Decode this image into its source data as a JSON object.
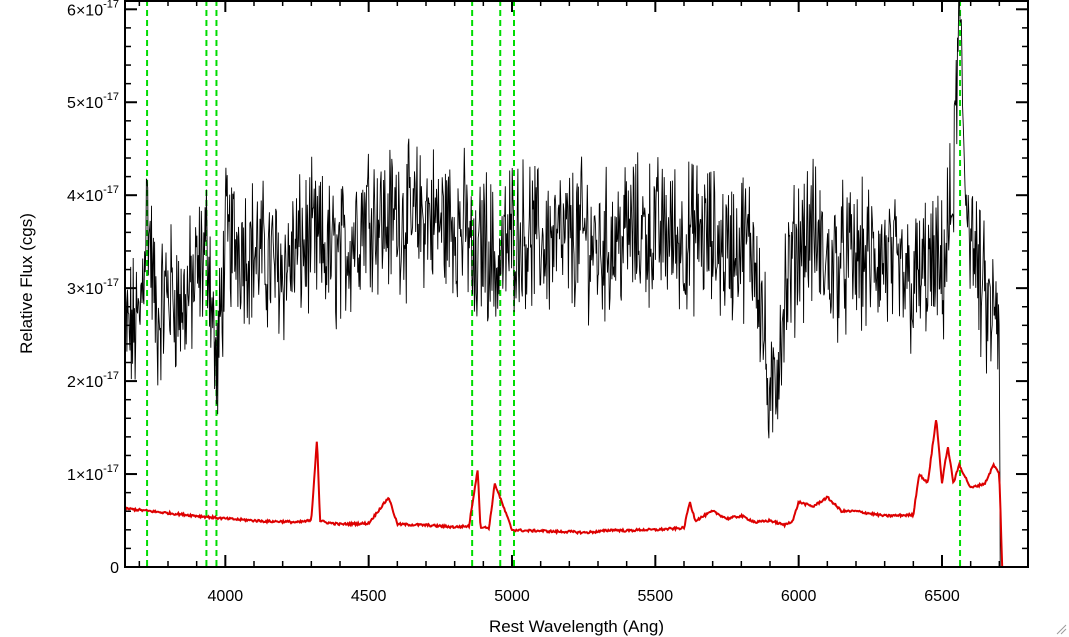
{
  "chart_data": {
    "type": "line",
    "title": "",
    "xlabel": "Rest Wavelength (Ang)",
    "ylabel": "Relative Flux (cgs)",
    "xlim": [
      3650,
      6800
    ],
    "ylim": [
      0,
      6.1e-17
    ],
    "xticks": [
      {
        "value": 4000,
        "label": "4000"
      },
      {
        "value": 4500,
        "label": "4500"
      },
      {
        "value": 5000,
        "label": "5000"
      },
      {
        "value": 5500,
        "label": "5500"
      },
      {
        "value": 6000,
        "label": "6000"
      },
      {
        "value": 6500,
        "label": "6500"
      }
    ],
    "yticks": [
      {
        "value": 0,
        "label": "0",
        "mantissa": "",
        "exponent": ""
      },
      {
        "value": 1e-17,
        "label": "1×10⁻¹⁷",
        "mantissa": "1×10",
        "exponent": "-17"
      },
      {
        "value": 2e-17,
        "label": "2×10⁻¹⁷",
        "mantissa": "2×10",
        "exponent": "-17"
      },
      {
        "value": 3e-17,
        "label": "3×10⁻¹⁷",
        "mantissa": "3×10",
        "exponent": "-17"
      },
      {
        "value": 4e-17,
        "label": "4×10⁻¹⁷",
        "mantissa": "4×10",
        "exponent": "-17"
      },
      {
        "value": 5e-17,
        "label": "5×10⁻¹⁷",
        "mantissa": "5×10",
        "exponent": "-17"
      },
      {
        "value": 6e-17,
        "label": "6×10⁻¹⁷",
        "mantissa": "6×10",
        "exponent": "-17"
      }
    ],
    "grid": false,
    "legend": "none",
    "vlines": {
      "color": "#00dd00",
      "style": "dashed",
      "x": [
        3727,
        3934,
        3969,
        4861,
        4959,
        5007,
        6563
      ]
    },
    "series": [
      {
        "color": "#000000",
        "style": "noisy",
        "x": [
          3650,
          3700,
          3727,
          3760,
          3800,
          3850,
          3900,
          3940,
          3970,
          4000,
          4050,
          4100,
          4150,
          4200,
          4250,
          4300,
          4350,
          4400,
          4450,
          4500,
          4550,
          4600,
          4650,
          4700,
          4750,
          4800,
          4850,
          4870,
          4900,
          4950,
          5000,
          5050,
          5100,
          5150,
          5200,
          5250,
          5300,
          5350,
          5400,
          5450,
          5500,
          5550,
          5600,
          5650,
          5700,
          5750,
          5800,
          5850,
          5880,
          5900,
          5950,
          6000,
          6050,
          6100,
          6150,
          6200,
          6250,
          6300,
          6350,
          6400,
          6450,
          6500,
          6540,
          6560,
          6580,
          6620,
          6660,
          6700
        ],
        "y": [
          2.5e-17,
          2.6e-17,
          3.9e-17,
          2.6e-17,
          3e-17,
          2.8e-17,
          3.1e-17,
          3.5e-17,
          2e-17,
          3.5e-17,
          3.5e-17,
          3.4e-17,
          3.3e-17,
          3.2e-17,
          3.4e-17,
          3.5e-17,
          3.4e-17,
          3.3e-17,
          3.6e-17,
          3.9e-17,
          3.7e-17,
          3.8e-17,
          3.7e-17,
          3.8e-17,
          3.7e-17,
          3.7e-17,
          3.6e-17,
          3e-17,
          3.6e-17,
          3.2e-17,
          3.6e-17,
          3.6e-17,
          3.5e-17,
          3.5e-17,
          3.5e-17,
          3.6e-17,
          3.4e-17,
          3.5e-17,
          3.6e-17,
          3.6e-17,
          3.6e-17,
          3.6e-17,
          3.5e-17,
          3.6e-17,
          3.5e-17,
          3.4e-17,
          3.5e-17,
          3.4e-17,
          2.5e-17,
          1.5e-17,
          2.9e-17,
          3.5e-17,
          3.6e-17,
          3.2e-17,
          3.3e-17,
          3.3e-17,
          3.3e-17,
          3.3e-17,
          3.1e-17,
          3e-17,
          3.2e-17,
          3.1e-17,
          4e-17,
          6e-17,
          4.2e-17,
          3.2e-17,
          2.7e-17,
          2.7e-17
        ]
      },
      {
        "color": "#dd0000",
        "style": "smooth",
        "x": [
          3650,
          3800,
          3900,
          4000,
          4100,
          4150,
          4200,
          4250,
          4300,
          4320,
          4330,
          4350,
          4400,
          4500,
          4570,
          4600,
          4700,
          4800,
          4850,
          4880,
          4890,
          4920,
          4940,
          5000,
          5050,
          5100,
          5150,
          5200,
          5250,
          5300,
          5350,
          5400,
          5450,
          5500,
          5550,
          5600,
          5620,
          5640,
          5700,
          5750,
          5800,
          5850,
          5900,
          5950,
          5980,
          6000,
          6050,
          6100,
          6150,
          6200,
          6300,
          6400,
          6420,
          6450,
          6480,
          6500,
          6520,
          6540,
          6560,
          6600,
          6650,
          6680,
          6700,
          6710
        ],
        "y": [
          6.3e-18,
          5.8e-18,
          5.5e-18,
          5.2e-18,
          5e-18,
          4.9e-18,
          4.9e-18,
          4.8e-18,
          5e-18,
          1.4e-17,
          5e-18,
          4.8e-18,
          4.6e-18,
          4.7e-18,
          7.5e-18,
          4.6e-18,
          4.5e-18,
          4.3e-18,
          4.4e-18,
          1.05e-17,
          4.3e-18,
          4.2e-18,
          9e-18,
          4e-18,
          3.9e-18,
          3.9e-18,
          3.8e-18,
          3.8e-18,
          3.7e-18,
          3.8e-18,
          4e-18,
          3.9e-18,
          4e-18,
          4e-18,
          4.1e-18,
          4.2e-18,
          7e-18,
          5e-18,
          6e-18,
          5.2e-18,
          5.5e-18,
          4.8e-18,
          5e-18,
          4.5e-18,
          5e-18,
          7e-18,
          6.5e-18,
          7.5e-18,
          6e-18,
          6e-18,
          5.5e-18,
          5.6e-18,
          1e-17,
          9e-18,
          1.6e-17,
          9e-18,
          1.3e-17,
          9e-18,
          1.1e-17,
          8.5e-18,
          9e-18,
          1.1e-17,
          1e-17,
          0
        ]
      }
    ]
  }
}
